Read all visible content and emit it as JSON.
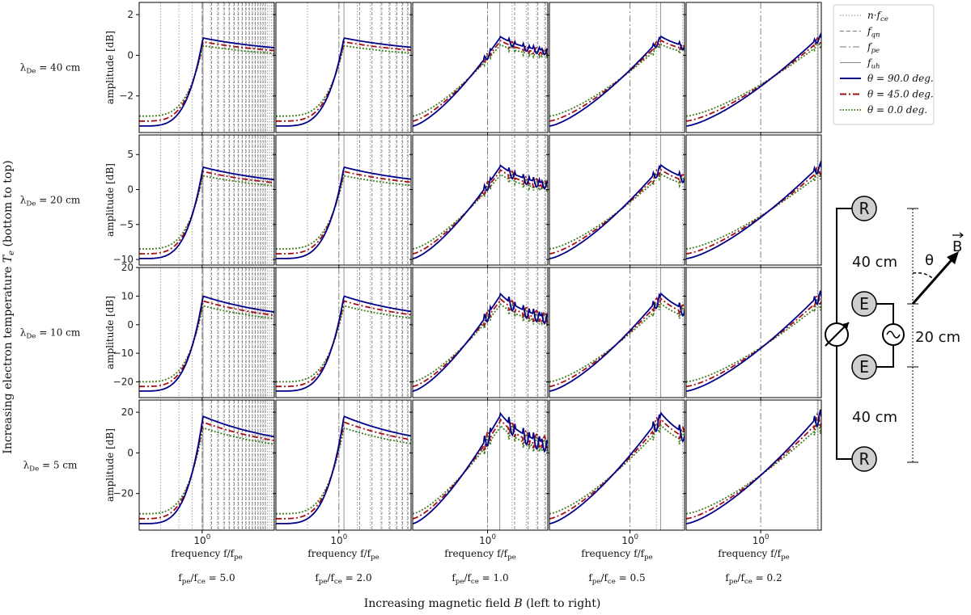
{
  "figure": {
    "xlabel_bottom": "Increasing magnetic field B (left to right)",
    "ylabel_left": "Increasing electron temperature T_e (bottom to top)"
  },
  "chart_data": {
    "type": "line",
    "x_label": "frequency f/f_pe",
    "y_label": "amplitude [dB]",
    "x_scale": "log",
    "x_tick_label": "10^0",
    "rows": [
      {
        "label": "λ_De = 40 cm",
        "y_ticks": [
          -2,
          0,
          2
        ],
        "ylim": [
          -3.8,
          2.6
        ]
      },
      {
        "label": "λ_De = 20 cm",
        "y_ticks": [
          -10,
          -5,
          0,
          5
        ],
        "ylim": [
          -10.8,
          7.8
        ]
      },
      {
        "label": "λ_De = 10 cm",
        "y_ticks": [
          -20,
          -10,
          0,
          10,
          20
        ],
        "ylim": [
          -25.5,
          20
        ]
      },
      {
        "label": "λ_De = 5 cm",
        "y_ticks": [
          -20,
          0,
          20
        ],
        "ylim": [
          -38,
          26
        ]
      }
    ],
    "columns": [
      {
        "label": "f_pe/f_ce = 5.0",
        "ratio": 5.0,
        "xlim": [
          0.25,
          4.9
        ]
      },
      {
        "label": "f_pe/f_ce = 2.0",
        "ratio": 2.0,
        "xlim": [
          0.25,
          4.9
        ]
      },
      {
        "label": "f_pe/f_ce = 1.0",
        "ratio": 1.0,
        "xlim": [
          0.12,
          5.5
        ]
      },
      {
        "label": "f_pe/f_ce = 0.5",
        "ratio": 0.5,
        "xlim": [
          0.12,
          4.2
        ]
      },
      {
        "label": "f_pe/f_ce = 0.2",
        "ratio": 0.2,
        "xlim": [
          0.12,
          5.6
        ]
      }
    ],
    "legend": {
      "position": "top-right",
      "entries": [
        {
          "label": "n·f_ce",
          "style": "dotted",
          "color": "#888888"
        },
        {
          "label": "f_qn",
          "style": "dashed",
          "color": "#777777"
        },
        {
          "label": "f_pe",
          "style": "dashdot",
          "color": "#777777"
        },
        {
          "label": "f_uh",
          "style": "solid-thin",
          "color": "#888888"
        },
        {
          "label": "θ = 90.0 deg.",
          "style": "solid",
          "color": "#00008b"
        },
        {
          "label": "θ = 45.0 deg.",
          "style": "dashdot",
          "color": "#a50f15"
        },
        {
          "label": "θ = 0.0 deg.",
          "style": "dotted",
          "color": "#3f7f1f"
        }
      ]
    }
  },
  "schematic": {
    "probe_labels": [
      "R",
      "E",
      "E",
      "R"
    ],
    "dist_outer": "40 cm",
    "dist_inner": "20 cm",
    "angle_label": "θ",
    "field_label": "B"
  }
}
